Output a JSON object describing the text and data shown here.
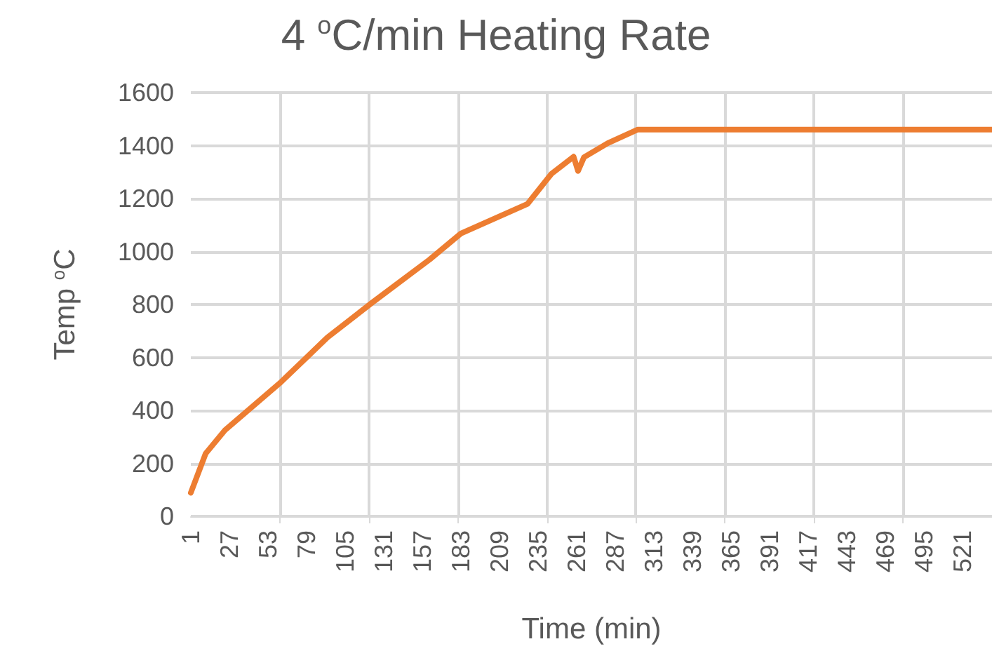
{
  "chart_data": {
    "type": "line",
    "title": "4 $^{o}$C/min Heating Rate",
    "xlabel": "Time (min)",
    "ylabel": "Temp $^{o}$C",
    "x": [
      1,
      11,
      24,
      62,
      93,
      123,
      162,
      183,
      228,
      244,
      259,
      262,
      266,
      282,
      302,
      541
    ],
    "series": [
      {
        "color": "#ed7d31",
        "values": [
          89,
          237,
          325,
          508,
          675,
          806,
          970,
          1068,
          1180,
          1293,
          1358,
          1304,
          1356,
          1409,
          1460,
          1460
        ]
      }
    ],
    "xlim": [
      1,
      541
    ],
    "xticks": [
      1,
      27,
      53,
      79,
      105,
      131,
      157,
      183,
      209,
      235,
      261,
      287,
      313,
      339,
      365,
      391,
      417,
      443,
      469,
      495,
      521,
      {
        "value": 61,
        "label": null
      },
      {
        "value": 121,
        "label": null
      },
      {
        "value": 181,
        "label": null
      },
      {
        "value": 241,
        "label": null
      },
      {
        "value": 301,
        "label": null
      },
      {
        "value": 361,
        "label": null
      },
      {
        "value": 421,
        "label": null
      },
      {
        "value": 481,
        "label": null
      }
    ],
    "ylim": [
      0,
      1600
    ],
    "yticks": [
      0,
      200,
      400,
      600,
      800,
      1000,
      1200,
      1400,
      1600
    ],
    "grid": true,
    "marker": "none",
    "line_style": "solid"
  }
}
